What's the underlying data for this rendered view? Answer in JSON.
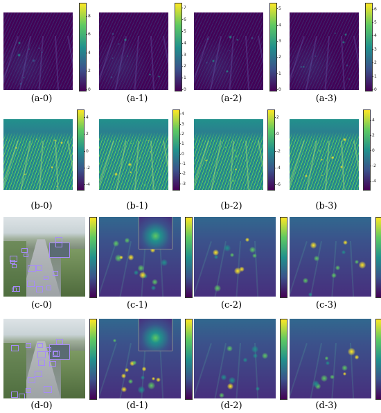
{
  "rows": [
    {
      "id": "a",
      "panels": [
        {
          "caption": "(a-0)",
          "colorbar_ticks": [
            "0",
            "2",
            "4",
            "6",
            "8"
          ],
          "cbar_range": [
            0,
            9.5
          ]
        },
        {
          "caption": "(a-1)",
          "colorbar_ticks": [
            "0",
            "1",
            "2",
            "3",
            "4",
            "5",
            "6",
            "7"
          ],
          "cbar_range": [
            0,
            7.5
          ]
        },
        {
          "caption": "(a-2)",
          "colorbar_ticks": [
            "0",
            "1",
            "2",
            "3",
            "4",
            "5"
          ],
          "cbar_range": [
            0,
            5.4
          ]
        },
        {
          "caption": "(a-3)",
          "colorbar_ticks": [
            "0",
            "1",
            "2",
            "3",
            "4",
            "5",
            "6"
          ],
          "cbar_range": [
            0,
            6.5
          ]
        }
      ]
    },
    {
      "id": "b",
      "panels": [
        {
          "caption": "(b-0)",
          "colorbar_ticks": [
            "-4",
            "-2",
            "0",
            "2",
            "4"
          ],
          "cbar_range": [
            -4.5,
            5
          ]
        },
        {
          "caption": "(b-1)",
          "colorbar_ticks": [
            "-3",
            "-2",
            "-1",
            "0",
            "1",
            "2",
            "3",
            "4"
          ],
          "cbar_range": [
            -3.5,
            4.5
          ]
        },
        {
          "caption": "(b-2)",
          "colorbar_ticks": [
            "-6",
            "-4",
            "-2",
            "0",
            "2"
          ],
          "cbar_range": [
            -6.5,
            3
          ]
        },
        {
          "caption": "(b-3)",
          "colorbar_ticks": [
            "-4",
            "-2",
            "0",
            "2",
            "4"
          ],
          "cbar_range": [
            -5,
            5.5
          ]
        }
      ]
    },
    {
      "id": "c",
      "panels": [
        {
          "caption": "(c-0)"
        },
        {
          "caption": "(c-1)"
        },
        {
          "caption": "(c-2)"
        },
        {
          "caption": "(c-3)"
        }
      ]
    },
    {
      "id": "d",
      "panels": [
        {
          "caption": "(d-0)"
        },
        {
          "caption": "(d-1)"
        },
        {
          "caption": "(d-2)"
        },
        {
          "caption": "(d-3)"
        }
      ]
    }
  ],
  "colors": {
    "viridis_dark": "#440154",
    "viridis_blue": "#3b528b",
    "viridis_teal": "#21918c",
    "viridis_green": "#5ec962",
    "viridis_yellow": "#fde725",
    "detection_box": "#a78bfa"
  }
}
